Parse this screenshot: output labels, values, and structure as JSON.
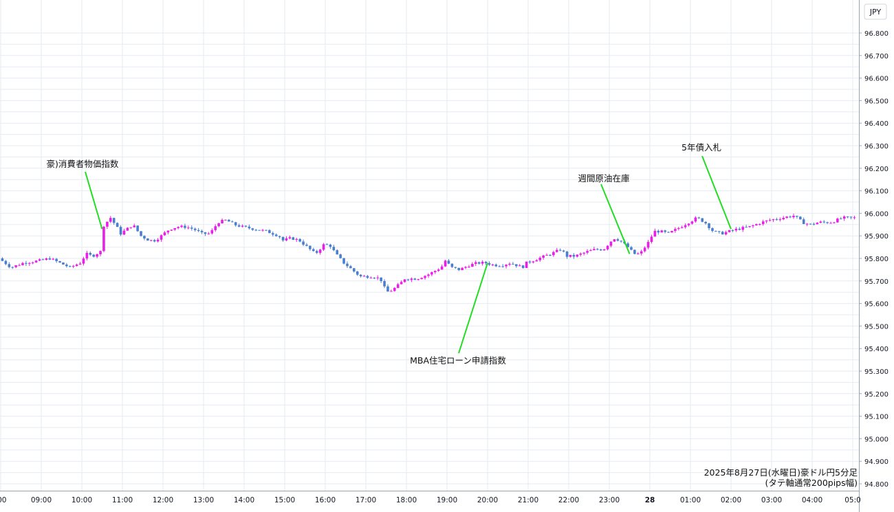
{
  "chart_data": {
    "type": "candlestick",
    "currency_label": "JPY",
    "caption_line1": "2025年8月27日(水曜日)豪ドル円5分足",
    "caption_line2": "(タテ軸通常200pips幅)",
    "ylim": [
      94.8,
      96.8
    ],
    "y_ticks": [
      "96.800",
      "96.700",
      "96.600",
      "96.500",
      "96.400",
      "96.300",
      "96.200",
      "96.100",
      "96.000",
      "95.900",
      "95.800",
      "95.700",
      "95.600",
      "95.500",
      "95.400",
      "95.300",
      "95.200",
      "95.100",
      "95.000",
      "94.900",
      "94.800"
    ],
    "x_ticks": [
      {
        "label": ":00",
        "t": 8.0
      },
      {
        "label": "09:00",
        "t": 9.0
      },
      {
        "label": "10:00",
        "t": 10.0
      },
      {
        "label": "11:00",
        "t": 11.0
      },
      {
        "label": "12:00",
        "t": 12.0
      },
      {
        "label": "13:00",
        "t": 13.0
      },
      {
        "label": "14:00",
        "t": 14.0
      },
      {
        "label": "15:00",
        "t": 15.0
      },
      {
        "label": "16:00",
        "t": 16.0
      },
      {
        "label": "17:00",
        "t": 17.0
      },
      {
        "label": "18:00",
        "t": 18.0
      },
      {
        "label": "19:00",
        "t": 19.0
      },
      {
        "label": "20:00",
        "t": 20.0
      },
      {
        "label": "21:00",
        "t": 21.0
      },
      {
        "label": "22:00",
        "t": 22.0
      },
      {
        "label": "23:00",
        "t": 23.0
      },
      {
        "label": "28",
        "t": 24.0,
        "bold": true
      },
      {
        "label": "01:00",
        "t": 25.0
      },
      {
        "label": "02:00",
        "t": 26.0
      },
      {
        "label": "03:00",
        "t": 27.0
      },
      {
        "label": "04:00",
        "t": 28.0
      },
      {
        "label": "05:0",
        "t": 29.0
      }
    ],
    "colors": {
      "up": "#e91ee9",
      "down": "#4a7fd0",
      "grid": "#e4ebf2",
      "annotation_line": "#22dd22"
    },
    "annotations": [
      {
        "text": "豪)消費者物価指数",
        "t": 10.5,
        "price": 95.93
      },
      {
        "text": "MBA住宅ローン申請指数",
        "t": 20.0,
        "price": 95.78
      },
      {
        "text": "週間原油在庫",
        "t": 23.5,
        "price": 95.82
      },
      {
        "text": "5年債入札",
        "t": 26.0,
        "price": 95.93
      }
    ],
    "price_path": [
      [
        8.0,
        95.8
      ],
      [
        8.3,
        95.76
      ],
      [
        8.6,
        95.78
      ],
      [
        9.0,
        95.79
      ],
      [
        9.25,
        95.8
      ],
      [
        9.5,
        95.78
      ],
      [
        9.75,
        95.76
      ],
      [
        10.0,
        95.78
      ],
      [
        10.15,
        95.82
      ],
      [
        10.3,
        95.81
      ],
      [
        10.5,
        95.83
      ],
      [
        10.55,
        95.94
      ],
      [
        10.75,
        95.98
      ],
      [
        10.9,
        95.94
      ],
      [
        11.0,
        95.91
      ],
      [
        11.15,
        95.93
      ],
      [
        11.3,
        95.95
      ],
      [
        11.5,
        95.9
      ],
      [
        11.7,
        95.88
      ],
      [
        11.85,
        95.88
      ],
      [
        12.0,
        95.9
      ],
      [
        12.2,
        95.93
      ],
      [
        12.4,
        95.94
      ],
      [
        12.6,
        95.94
      ],
      [
        12.8,
        95.93
      ],
      [
        13.0,
        95.91
      ],
      [
        13.2,
        95.91
      ],
      [
        13.4,
        95.96
      ],
      [
        13.6,
        95.97
      ],
      [
        13.8,
        95.95
      ],
      [
        14.0,
        95.94
      ],
      [
        14.3,
        95.93
      ],
      [
        14.6,
        95.92
      ],
      [
        14.9,
        95.9
      ],
      [
        15.0,
        95.88
      ],
      [
        15.2,
        95.89
      ],
      [
        15.4,
        95.88
      ],
      [
        15.6,
        95.85
      ],
      [
        15.8,
        95.82
      ],
      [
        16.0,
        95.86
      ],
      [
        16.15,
        95.86
      ],
      [
        16.3,
        95.82
      ],
      [
        16.5,
        95.78
      ],
      [
        16.7,
        95.75
      ],
      [
        16.9,
        95.72
      ],
      [
        17.0,
        95.72
      ],
      [
        17.2,
        95.72
      ],
      [
        17.4,
        95.71
      ],
      [
        17.55,
        95.65
      ],
      [
        17.7,
        95.66
      ],
      [
        17.9,
        95.69
      ],
      [
        18.0,
        95.71
      ],
      [
        18.3,
        95.71
      ],
      [
        18.6,
        95.73
      ],
      [
        18.9,
        95.76
      ],
      [
        19.0,
        95.79
      ],
      [
        19.15,
        95.76
      ],
      [
        19.35,
        95.75
      ],
      [
        19.6,
        95.77
      ],
      [
        19.8,
        95.78
      ],
      [
        20.0,
        95.78
      ],
      [
        20.2,
        95.77
      ],
      [
        20.4,
        95.77
      ],
      [
        20.6,
        95.78
      ],
      [
        20.75,
        95.77
      ],
      [
        20.9,
        95.76
      ],
      [
        21.0,
        95.78
      ],
      [
        21.3,
        95.8
      ],
      [
        21.6,
        95.82
      ],
      [
        21.85,
        95.84
      ],
      [
        22.0,
        95.81
      ],
      [
        22.2,
        95.81
      ],
      [
        22.5,
        95.83
      ],
      [
        22.7,
        95.84
      ],
      [
        22.9,
        95.84
      ],
      [
        23.0,
        95.86
      ],
      [
        23.15,
        95.89
      ],
      [
        23.3,
        95.88
      ],
      [
        23.5,
        95.85
      ],
      [
        23.65,
        95.82
      ],
      [
        23.8,
        95.82
      ],
      [
        24.0,
        95.87
      ],
      [
        24.15,
        95.92
      ],
      [
        24.3,
        95.92
      ],
      [
        24.5,
        95.91
      ],
      [
        24.8,
        95.94
      ],
      [
        25.0,
        95.96
      ],
      [
        25.2,
        95.98
      ],
      [
        25.4,
        95.96
      ],
      [
        25.6,
        95.92
      ],
      [
        25.8,
        95.91
      ],
      [
        26.0,
        95.92
      ],
      [
        26.2,
        95.93
      ],
      [
        26.5,
        95.94
      ],
      [
        26.8,
        95.96
      ],
      [
        27.0,
        95.97
      ],
      [
        27.3,
        95.98
      ],
      [
        27.6,
        95.99
      ],
      [
        27.8,
        95.96
      ],
      [
        28.0,
        95.95
      ],
      [
        28.2,
        95.96
      ],
      [
        28.5,
        95.96
      ],
      [
        28.8,
        95.98
      ],
      [
        29.0,
        95.98
      ]
    ]
  }
}
